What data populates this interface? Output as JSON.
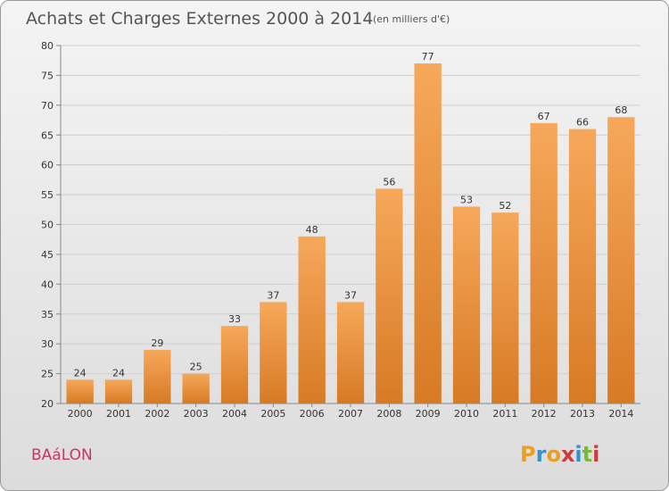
{
  "chart_data": {
    "type": "bar",
    "title": "Achats et Charges Externes 2000 à 2014",
    "subtitle": "(en milliers d'€)",
    "categories": [
      "2000",
      "2001",
      "2002",
      "2003",
      "2004",
      "2005",
      "2006",
      "2007",
      "2008",
      "2009",
      "2010",
      "2011",
      "2012",
      "2013",
      "2014"
    ],
    "values": [
      24,
      24,
      29,
      25,
      33,
      37,
      48,
      37,
      56,
      77,
      53,
      52,
      67,
      66,
      68
    ],
    "ylim": [
      20,
      80
    ],
    "yticks": [
      20,
      25,
      30,
      35,
      40,
      45,
      50,
      55,
      60,
      65,
      70,
      75,
      80
    ],
    "grid": true,
    "bar_color": "#f0a050"
  },
  "commune": "BAáLON",
  "brand": {
    "letters": [
      "P",
      "r",
      "o",
      "x",
      "i",
      "t",
      "i"
    ],
    "colors": [
      "#e8a020",
      "#3a8fd0",
      "#e8a020",
      "#d03a3a",
      "#3a8fd0",
      "#7ab83a",
      "#d03a3a"
    ]
  }
}
